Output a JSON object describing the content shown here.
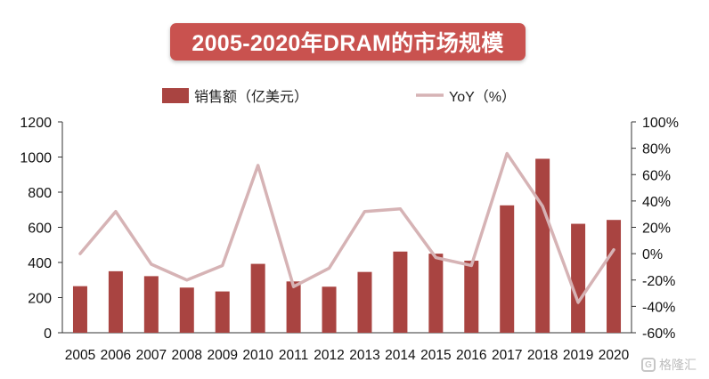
{
  "chart_data": {
    "type": "bar",
    "title": "2005-2020年DRAM的市场规模",
    "categories": [
      "2005",
      "2006",
      "2007",
      "2008",
      "2009",
      "2010",
      "2011",
      "2012",
      "2013",
      "2014",
      "2015",
      "2016",
      "2017",
      "2018",
      "2019",
      "2020"
    ],
    "series": [
      {
        "name": "销售额（亿美元）",
        "type": "bar",
        "axis": "left",
        "color": "#a94441",
        "values": [
          265,
          350,
          322,
          257,
          235,
          392,
          292,
          262,
          346,
          462,
          450,
          410,
          725,
          990,
          620,
          642
        ]
      },
      {
        "name": "YoY（%）",
        "type": "line",
        "axis": "right",
        "color": "#d6b3b5",
        "values": [
          0,
          32,
          -8,
          -20,
          -9,
          67,
          -25,
          -11,
          32,
          34,
          -3,
          -9,
          76,
          36,
          -37,
          3
        ]
      }
    ],
    "y_left": {
      "lim": [
        0,
        1200
      ],
      "ticks": [
        "0",
        "200",
        "400",
        "600",
        "800",
        "1000",
        "1200"
      ]
    },
    "y_right": {
      "lim": [
        -60,
        100
      ],
      "ticks": [
        "-60%",
        "-40%",
        "-20%",
        "0%",
        "20%",
        "40%",
        "60%",
        "80%",
        "100%"
      ]
    },
    "legend": {
      "position": "top",
      "bar_label": "销售额（亿美元）",
      "line_label": "YoY（%）"
    },
    "grid": false
  },
  "watermark": {
    "text": "格隆汇",
    "icon": "g-logo-icon"
  }
}
